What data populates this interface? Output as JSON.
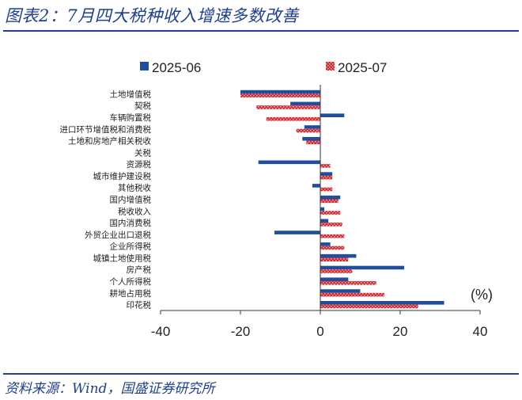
{
  "header": {
    "title": "图表2：7月四大税种收入增速多数改善"
  },
  "footer": {
    "source": "资料来源：Wind，国盛证券研究所"
  },
  "chart_data": {
    "type": "bar",
    "orientation": "horizontal",
    "unit_label": "(%)",
    "legend_position": "top",
    "xlim": [
      -40,
      40
    ],
    "x_ticks": [
      "-40",
      "-20",
      "0",
      "20",
      "40"
    ],
    "categories": [
      "土地增值税",
      "契税",
      "车辆购置税",
      "进口环节增值税和消费税",
      "土地和房地产相关税收",
      "关税",
      "资源税",
      "城市维护建设税",
      "其他税收",
      "国内增值税",
      "税收收入",
      "国内消费税",
      "外贸企业出口退税",
      "企业所得税",
      "城镇土地使用税",
      "房产税",
      "个人所得税",
      "耕地占用税",
      "印花税"
    ],
    "series": [
      {
        "name": "2025-06",
        "color": "#1f4e9c",
        "values": [
          -20,
          -7.5,
          6,
          -4,
          -4.5,
          0,
          -15.5,
          3,
          -2,
          5,
          1,
          2,
          -11.5,
          2.5,
          9,
          21,
          7,
          10,
          31
        ]
      },
      {
        "name": "2025-07",
        "color": "#e0232b",
        "values": [
          -20,
          -16,
          -13.5,
          -6,
          -3.5,
          0,
          2.5,
          3,
          3,
          4.5,
          5,
          5.5,
          6,
          6,
          7,
          8,
          14,
          16,
          24.5
        ]
      }
    ],
    "gridlines": false
  }
}
